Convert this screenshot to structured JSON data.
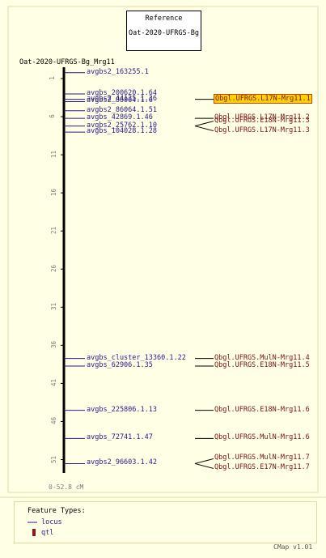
{
  "reference": {
    "heading": "Reference",
    "map_name": "Oat-2020-UFRGS-Bg"
  },
  "map": {
    "title": "Oat-2020-UFRGS-Bg_Mrg11",
    "scale_label": "0-52.8 cM",
    "ticks": [
      "1",
      "6",
      "11",
      "16",
      "21",
      "26",
      "31",
      "36",
      "41",
      "46",
      "51"
    ],
    "loci": [
      {
        "label": "avgbs2_163255.1",
        "pos_cM": 0.5
      },
      {
        "label": "avgbs_200620.1.64",
        "pos_cM": 3.3
      },
      {
        "label": "avgbs2_44135.1.36",
        "pos_cM": 4.0
      },
      {
        "label": "avgbs2_86064.1.6",
        "pos_cM": 4.3
      },
      {
        "label": "avgbs2_86064.1.51",
        "pos_cM": 5.5
      },
      {
        "label": "avgbs_42869.1.46",
        "pos_cM": 6.5
      },
      {
        "label": "avgbs2_25762.1.10",
        "pos_cM": 7.5
      },
      {
        "label": "avgbs_104028.1.28",
        "pos_cM": 8.3
      },
      {
        "label": "avgbs_cluster_13360.1.22",
        "pos_cM": 38.0
      },
      {
        "label": "avgbs_62906.1.35",
        "pos_cM": 39.0
      },
      {
        "label": "avgbs_225806.1.13",
        "pos_cM": 44.8
      },
      {
        "label": "avgbs_72741.1.47",
        "pos_cM": 48.5
      },
      {
        "label": "avgbs2_96603.1.42",
        "pos_cM": 51.8
      }
    ],
    "qtls": [
      {
        "label": "Qbgl.UFRGS.L17N-Mrg11.1",
        "locus": 2,
        "highlighted": true
      },
      {
        "label": "Qbgl.UFRGS.L17N-Mrg11.2",
        "locus": 5,
        "highlighted": false
      },
      {
        "label": "Qbgl.UFRGS.E18N-Mrg11.3",
        "locus": 6,
        "highlighted": false
      },
      {
        "label": "Qbgl.UFRGS.L17N-Mrg11.3",
        "locus": 6,
        "highlighted": false
      },
      {
        "label": "Qbgl.UFRGS.MulN-Mrg11.4",
        "locus": 8,
        "highlighted": false
      },
      {
        "label": "Qbgl.UFRGS.E18N-Mrg11.5",
        "locus": 9,
        "highlighted": false
      },
      {
        "label": "Qbgl.UFRGS.E18N-Mrg11.6",
        "locus": 10,
        "highlighted": false
      },
      {
        "label": "Qbgl.UFRGS.MulN-Mrg11.6",
        "locus": 11,
        "highlighted": false
      },
      {
        "label": "Qbgl.UFRGS.MulN-Mrg11.7",
        "locus": 12,
        "highlighted": false
      },
      {
        "label": "Qbgl.UFRGS.E17N-Mrg11.7",
        "locus": 12,
        "highlighted": false
      }
    ]
  },
  "legend": {
    "title": "Feature Types:",
    "items": [
      {
        "label": "locus",
        "icon": "line-icon"
      },
      {
        "label": "qtl",
        "icon": "bar-icon"
      }
    ]
  },
  "footer": {
    "version": "CMap v1.01"
  },
  "colors": {
    "background": "#ffffe6",
    "frame": "#e0d8a0",
    "locus_text": "#2a1a8a",
    "qtl_text": "#7a1010",
    "qtl_highlight": "#ffd400"
  }
}
